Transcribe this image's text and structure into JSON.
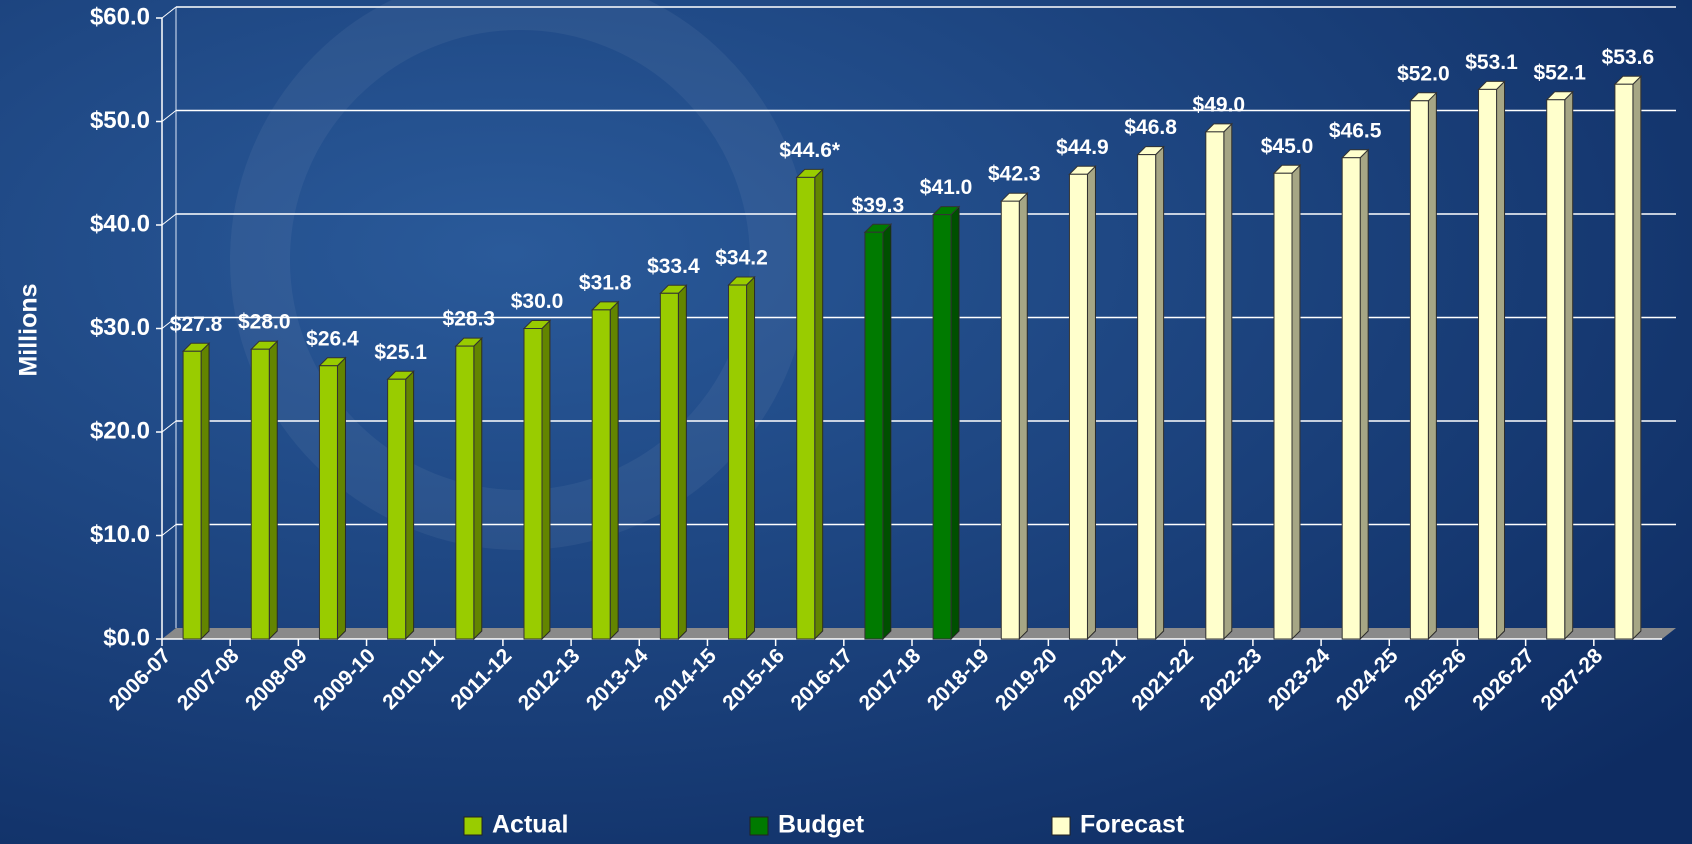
{
  "chart_data": {
    "type": "bar",
    "y_label": "Millions",
    "categories": [
      "2006-07",
      "2007-08",
      "2008-09",
      "2009-10",
      "2010-11",
      "2011-12",
      "2012-13",
      "2013-14",
      "2014-15",
      "2015-16",
      "2016-17",
      "2017-18",
      "2018-19",
      "2019-20",
      "2020-21",
      "2021-22",
      "2022-23",
      "2023-24",
      "2024-25",
      "2025-26",
      "2026-27",
      "2027-28"
    ],
    "series": [
      {
        "name": "Actual",
        "color": "#99cc00",
        "values": [
          27.8,
          28.0,
          26.4,
          25.1,
          28.3,
          30.0,
          31.8,
          33.4,
          34.2,
          44.6,
          null,
          null,
          null,
          null,
          null,
          null,
          null,
          null,
          null,
          null,
          null,
          null
        ],
        "value_labels": [
          "$27.8",
          "$28.0",
          "$26.4",
          "$25.1",
          "$28.3",
          "$30.0",
          "$31.8",
          "$33.4",
          "$34.2",
          "$44.6*",
          null,
          null,
          null,
          null,
          null,
          null,
          null,
          null,
          null,
          null,
          null,
          null
        ]
      },
      {
        "name": "Budget",
        "color": "#007a00",
        "values": [
          null,
          null,
          null,
          null,
          null,
          null,
          null,
          null,
          null,
          null,
          39.3,
          41.0,
          null,
          null,
          null,
          null,
          null,
          null,
          null,
          null,
          null,
          null
        ],
        "value_labels": [
          null,
          null,
          null,
          null,
          null,
          null,
          null,
          null,
          null,
          null,
          "$39.3",
          "$41.0",
          null,
          null,
          null,
          null,
          null,
          null,
          null,
          null,
          null,
          null
        ]
      },
      {
        "name": "Forecast",
        "color": "#ffffcc",
        "values": [
          null,
          null,
          null,
          null,
          null,
          null,
          null,
          null,
          null,
          null,
          null,
          null,
          42.3,
          44.9,
          46.8,
          49.0,
          45.0,
          46.5,
          52.0,
          53.1,
          52.1,
          53.6
        ],
        "value_labels": [
          null,
          null,
          null,
          null,
          null,
          null,
          null,
          null,
          null,
          null,
          null,
          null,
          "$42.3",
          "$44.9",
          "$46.8",
          "$49.0",
          "$45.0",
          "$46.5",
          "$52.0",
          "$53.1",
          "$52.1",
          "$53.6"
        ]
      }
    ],
    "ylim": [
      0,
      60
    ],
    "yticks": [
      {
        "value": 0,
        "label": "$0.0"
      },
      {
        "value": 10,
        "label": "$10.0"
      },
      {
        "value": 20,
        "label": "$20.0"
      },
      {
        "value": 30,
        "label": "$30.0"
      },
      {
        "value": 40,
        "label": "$40.0"
      },
      {
        "value": 50,
        "label": "$50.0"
      },
      {
        "value": 60,
        "label": "$60.0"
      }
    ],
    "grid": true,
    "legend": "bottom"
  }
}
